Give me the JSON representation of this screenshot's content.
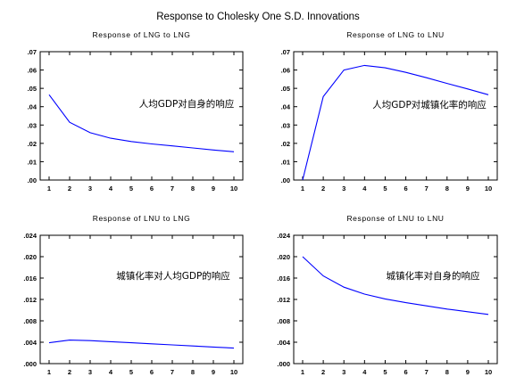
{
  "figure_title": "Response to Cholesky One S.D. Innovations",
  "colors": {
    "line": "#0000ff",
    "frame": "#000000",
    "background": "#ffffff"
  },
  "chart_data": [
    {
      "type": "line",
      "title": "Response of LNG to LNG",
      "annotation": "人均GDP对自身的响应",
      "x": [
        1,
        2,
        3,
        4,
        5,
        6,
        7,
        8,
        9,
        10
      ],
      "values": [
        0.0465,
        0.0315,
        0.0258,
        0.0228,
        0.021,
        0.0197,
        0.0186,
        0.0175,
        0.0164,
        0.0154
      ],
      "ylim": [
        0,
        0.07
      ],
      "yticks": [
        ".00",
        ".01",
        ".02",
        ".03",
        ".04",
        ".05",
        ".06",
        ".07"
      ],
      "xticks": [
        "1",
        "2",
        "3",
        "4",
        "5",
        "6",
        "7",
        "8",
        "9",
        "10"
      ],
      "grid": false
    },
    {
      "type": "line",
      "title": "Response of LNG to LNU",
      "annotation": "人均GDP对城镇化率的响应",
      "x": [
        1,
        2,
        3,
        4,
        5,
        6,
        7,
        8,
        9,
        10
      ],
      "values": [
        0.0,
        0.0455,
        0.06,
        0.0625,
        0.0612,
        0.0587,
        0.0558,
        0.0527,
        0.0497,
        0.0465
      ],
      "ylim": [
        0,
        0.07
      ],
      "yticks": [
        ".00",
        ".01",
        ".02",
        ".03",
        ".04",
        ".05",
        ".06",
        ".07"
      ],
      "xticks": [
        "1",
        "2",
        "3",
        "4",
        "5",
        "6",
        "7",
        "8",
        "9",
        "10"
      ],
      "grid": false
    },
    {
      "type": "line",
      "title": "Response of LNU to LNG",
      "annotation": "城镇化率对人均GDP的响应",
      "x": [
        1,
        2,
        3,
        4,
        5,
        6,
        7,
        8,
        9,
        10
      ],
      "values": [
        0.0039,
        0.0044,
        0.0043,
        0.0041,
        0.0039,
        0.0037,
        0.0035,
        0.0033,
        0.0031,
        0.0029
      ],
      "ylim": [
        0,
        0.024
      ],
      "yticks": [
        ".000",
        ".004",
        ".008",
        ".012",
        ".016",
        ".020",
        ".024"
      ],
      "xticks": [
        "1",
        "2",
        "3",
        "4",
        "5",
        "6",
        "7",
        "8",
        "9",
        "10"
      ],
      "grid": false
    },
    {
      "type": "line",
      "title": "Response of LNU to LNU",
      "annotation": "城镇化率对自身的响应",
      "x": [
        1,
        2,
        3,
        4,
        5,
        6,
        7,
        8,
        9,
        10
      ],
      "values": [
        0.02,
        0.0164,
        0.0143,
        0.013,
        0.0121,
        0.0114,
        0.0108,
        0.0102,
        0.0097,
        0.0092
      ],
      "ylim": [
        0,
        0.024
      ],
      "yticks": [
        ".000",
        ".004",
        ".008",
        ".012",
        ".016",
        ".020",
        ".024"
      ],
      "xticks": [
        "1",
        "2",
        "3",
        "4",
        "5",
        "6",
        "7",
        "8",
        "9",
        "10"
      ],
      "grid": false
    }
  ]
}
